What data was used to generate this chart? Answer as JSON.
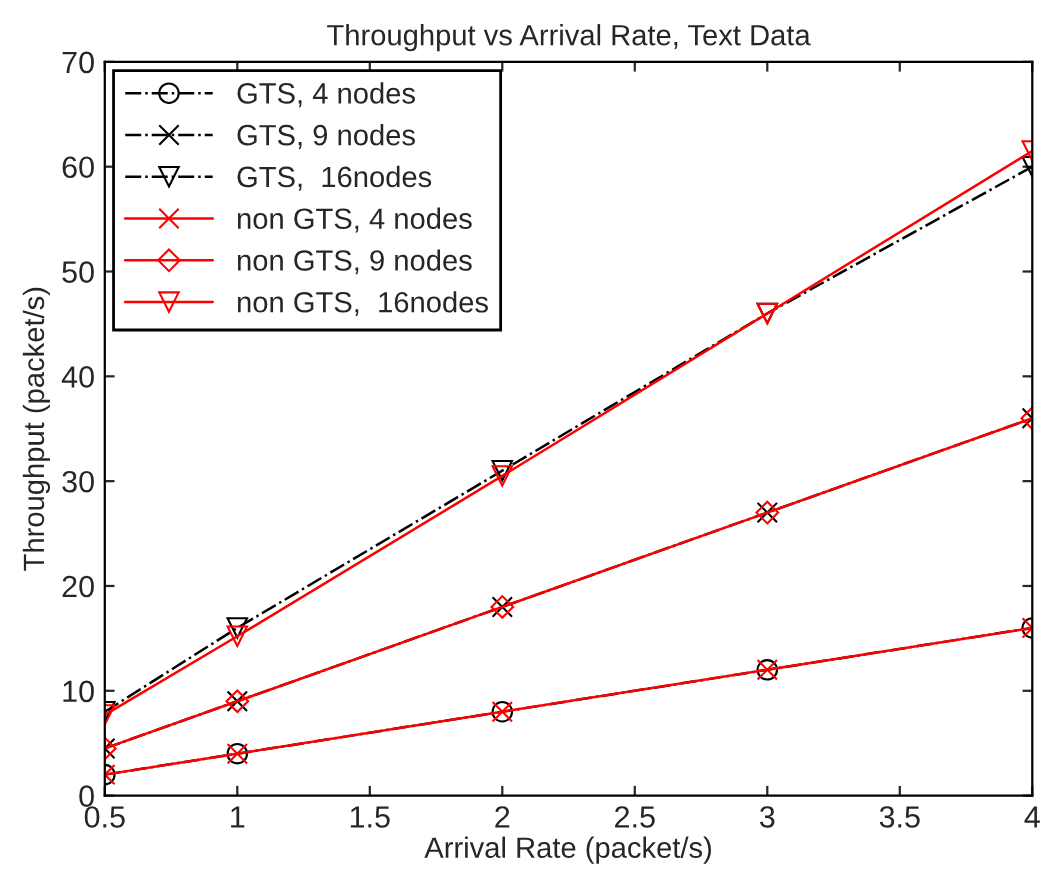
{
  "chart_data": {
    "type": "line",
    "title": "Throughput vs Arrival Rate, Text Data",
    "xlabel": "Arrival Rate (packet/s)",
    "ylabel": "Throughput (packet/s)",
    "x": [
      0.5,
      1,
      2,
      3,
      4
    ],
    "series": [
      {
        "name": "GTS, 4 nodes",
        "color": "#000000",
        "marker": "circle",
        "line_style": "dashed",
        "values": [
          2,
          4,
          8,
          12,
          16
        ]
      },
      {
        "name": "GTS, 9 nodes",
        "color": "#000000",
        "marker": "cross",
        "line_style": "dashed",
        "values": [
          4.5,
          9,
          18,
          27,
          36
        ]
      },
      {
        "name": "GTS,  16nodes",
        "color": "#000000",
        "marker": "triangle",
        "line_style": "dashed",
        "values": [
          8,
          16,
          31,
          46,
          60
        ]
      },
      {
        "name": "non GTS, 4 nodes",
        "color": "#ff0000",
        "marker": "cross",
        "line_style": "solid",
        "values": [
          2,
          4,
          8,
          12,
          16
        ]
      },
      {
        "name": "non GTS, 9 nodes",
        "color": "#ff0000",
        "marker": "diamond",
        "line_style": "solid",
        "values": [
          4.5,
          9,
          18,
          27,
          36
        ]
      },
      {
        "name": "non GTS,  16nodes",
        "color": "#ff0000",
        "marker": "triangle",
        "line_style": "solid",
        "values": [
          7.7,
          15.2,
          30.5,
          46,
          61.5
        ]
      }
    ],
    "xlim": [
      0.5,
      4
    ],
    "xticks": [
      0.5,
      1,
      1.5,
      2,
      2.5,
      3,
      3.5,
      4
    ],
    "ylim": [
      0,
      70
    ],
    "yticks": [
      0,
      10,
      20,
      30,
      40,
      50,
      60,
      70
    ],
    "grid": false,
    "legend": "top left"
  }
}
